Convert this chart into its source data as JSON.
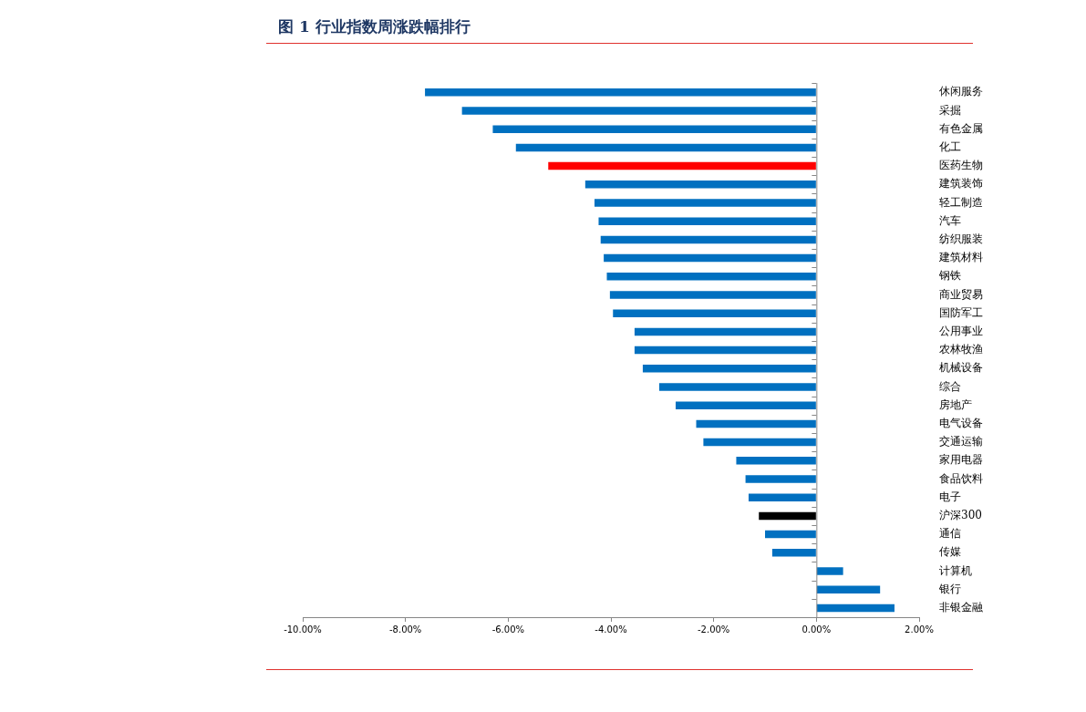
{
  "chart_data": {
    "type": "bar",
    "orientation": "horizontal",
    "title": "图 1 行业指数周涨跌幅排行",
    "categories": [
      "休闲服务",
      "采掘",
      "有色金属",
      "化工",
      "医药生物",
      "建筑装饰",
      "轻工制造",
      "汽车",
      "纺织服装",
      "建筑材料",
      "钢铁",
      "商业贸易",
      "国防军工",
      "公用事业",
      "农林牧渔",
      "机械设备",
      "综合",
      "房地产",
      "电气设备",
      "交通运输",
      "家用电器",
      "食品饮料",
      "电子",
      "沪深300",
      "通信",
      "传媒",
      "计算机",
      "银行",
      "非银金融"
    ],
    "values": [
      -7.62,
      -6.9,
      -6.3,
      -5.85,
      -5.22,
      -4.5,
      -4.32,
      -4.24,
      -4.2,
      -4.14,
      -4.08,
      -4.02,
      -3.96,
      -3.54,
      -3.54,
      -3.38,
      -3.06,
      -2.74,
      -2.34,
      -2.2,
      -1.56,
      -1.38,
      -1.32,
      -1.12,
      -1.0,
      -0.86,
      0.52,
      1.24,
      1.52
    ],
    "colors": [
      "#0070c0",
      "#0070c0",
      "#0070c0",
      "#0070c0",
      "#ff0000",
      "#0070c0",
      "#0070c0",
      "#0070c0",
      "#0070c0",
      "#0070c0",
      "#0070c0",
      "#0070c0",
      "#0070c0",
      "#0070c0",
      "#0070c0",
      "#0070c0",
      "#0070c0",
      "#0070c0",
      "#0070c0",
      "#0070c0",
      "#0070c0",
      "#0070c0",
      "#0070c0",
      "#000000",
      "#0070c0",
      "#0070c0",
      "#0070c0",
      "#0070c0",
      "#0070c0"
    ],
    "xlim": [
      -10,
      2
    ],
    "xticks": [
      {
        "value": -10,
        "label": "-10.00%"
      },
      {
        "value": -8,
        "label": "-8.00%"
      },
      {
        "value": -6,
        "label": "-6.00%"
      },
      {
        "value": -4,
        "label": "-4.00%"
      },
      {
        "value": -2,
        "label": "-2.00%"
      },
      {
        "value": 0,
        "label": "0.00%"
      },
      {
        "value": 2,
        "label": "2.00%"
      }
    ],
    "legend": false
  }
}
